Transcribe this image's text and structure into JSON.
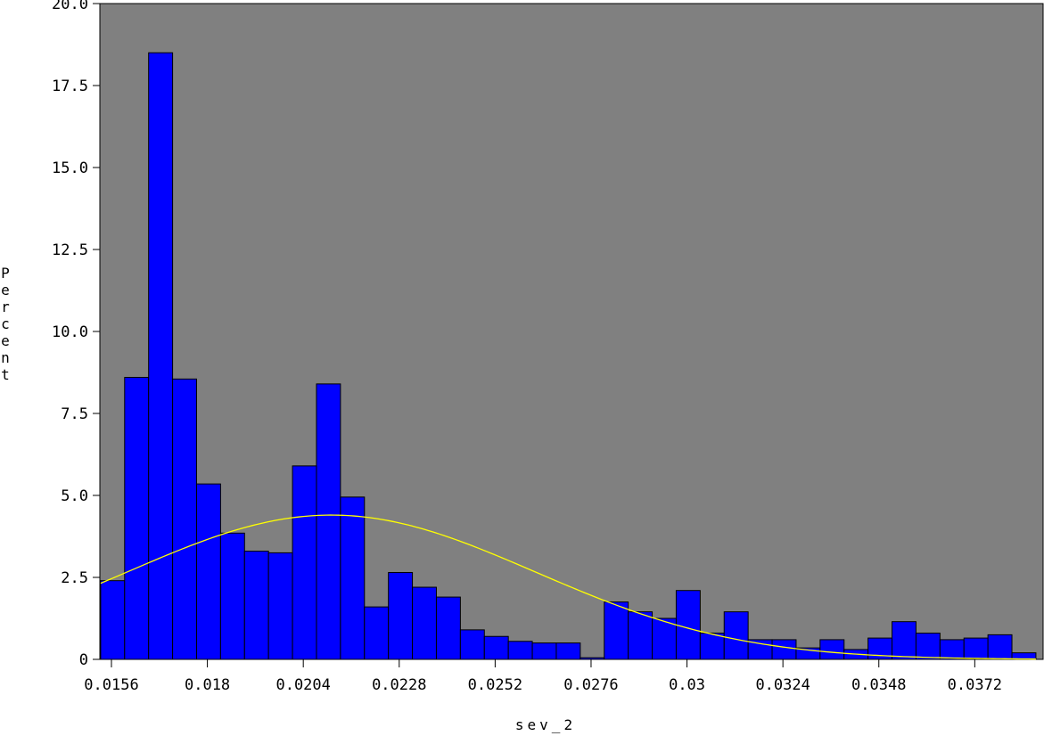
{
  "chart_data": {
    "type": "bar",
    "xlabel": "sev_2",
    "ylabel": "Percent",
    "ylim": [
      0,
      20
    ],
    "yticks": [
      "0",
      "2.5",
      "5.0",
      "7.5",
      "10.0",
      "12.5",
      "15.0",
      "17.5",
      "20.0"
    ],
    "ytick_values": [
      0,
      2.5,
      5,
      7.5,
      10,
      12.5,
      15,
      17.5,
      20
    ],
    "xlim": [
      0.01531,
      0.03891
    ],
    "xticks": [
      "0.0156",
      "0.018",
      "0.0204",
      "0.0228",
      "0.0252",
      "0.0276",
      "0.03",
      "0.0324",
      "0.0348",
      "0.0372"
    ],
    "xtick_values": [
      0.0156,
      0.018,
      0.0204,
      0.0228,
      0.0252,
      0.0276,
      0.03,
      0.0324,
      0.0348,
      0.0372
    ],
    "bin_start": 0.01533,
    "bin_width": 0.0006,
    "values": [
      2.4,
      8.6,
      18.5,
      8.55,
      5.35,
      3.85,
      3.3,
      3.25,
      5.9,
      8.4,
      4.95,
      1.6,
      2.65,
      2.2,
      1.9,
      0.9,
      0.7,
      0.55,
      0.5,
      0.5,
      0.05,
      1.75,
      1.45,
      1.25,
      2.1,
      0.8,
      1.45,
      0.6,
      0.6,
      0.35,
      0.6,
      0.3,
      0.65,
      1.15,
      0.8,
      0.6,
      0.65,
      0.75,
      0.2
    ],
    "curve": {
      "type": "normal",
      "mean": 0.0211,
      "sd": 0.0051,
      "peak_percent": 4.4
    },
    "colors": {
      "plot_bg": "#808080",
      "bar_fill": "#0000ff",
      "bar_stroke": "#000000",
      "curve": "#ffff00"
    }
  }
}
